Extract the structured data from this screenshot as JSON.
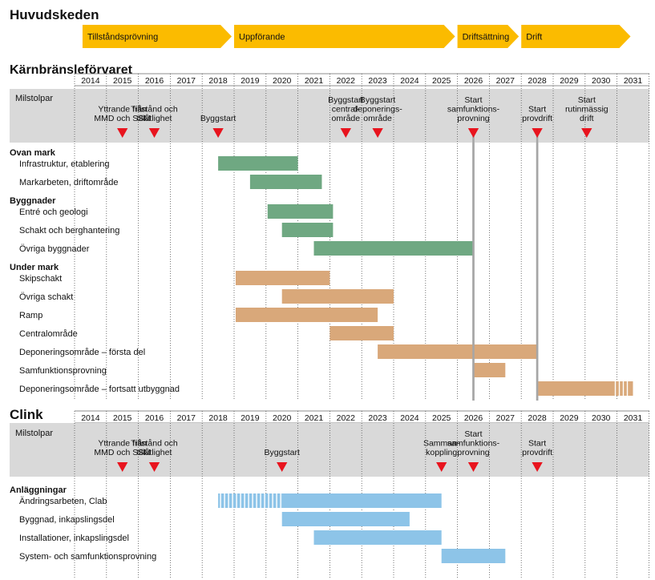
{
  "chart_data": {
    "type": "gantt",
    "years": [
      "2014",
      "2015",
      "2016",
      "2017",
      "2018",
      "2019",
      "2020",
      "2021",
      "2022",
      "2023",
      "2024",
      "2025",
      "2026",
      "2027",
      "2028",
      "2029",
      "2030",
      "2031"
    ],
    "main_timeline": {
      "title": "Huvudskeden",
      "phases": [
        {
          "label": "Tillståndsprövning",
          "start": 2014.25,
          "end": 2019.0
        },
        {
          "label": "Uppförande",
          "start": 2019.0,
          "end": 2026.0
        },
        {
          "label": "Driftsättning",
          "start": 2026.0,
          "end": 2028.0
        },
        {
          "label": "Drift",
          "start": 2028.0,
          "end": 2031.5
        }
      ]
    },
    "sections": [
      {
        "title": "Kärnbränsleförvaret",
        "milestones_label": "Milstolpar",
        "milestones": [
          {
            "label": "Yttrande från\nMMD och SSM",
            "x": 2015.5
          },
          {
            "label": "Tillstånd och\ntillåtlighet",
            "x": 2016.5
          },
          {
            "label": "Byggstart",
            "x": 2018.5
          },
          {
            "label": "Byggstart\ncentral-\nområde",
            "x": 2022.5
          },
          {
            "label": "Byggstart\ndeponerings-\nområde",
            "x": 2023.5
          },
          {
            "label": "Start\nsamfunktions-\nprovning",
            "x": 2026.5
          },
          {
            "label": "Start\nprovdrift",
            "x": 2028.5
          },
          {
            "label": "Start\nrutinmässig\ndrift",
            "x": 2030.05
          }
        ],
        "vertical_lines": [
          2026.5,
          2028.5
        ],
        "groups": [
          {
            "title": "Ovan mark",
            "color": "#6fa882",
            "tasks": [
              {
                "label": "Infrastruktur, etablering",
                "start": 2018.5,
                "end": 2021.0
              },
              {
                "label": "Markarbeten, driftområde",
                "start": 2019.5,
                "end": 2021.75
              }
            ]
          },
          {
            "title": "Byggnader",
            "color": "#6fa882",
            "tasks": [
              {
                "label": "Entré och geologi",
                "start": 2020.05,
                "end": 2022.1
              },
              {
                "label": "Schakt och berghantering",
                "start": 2020.5,
                "end": 2022.1
              },
              {
                "label": "Övriga byggnader",
                "start": 2021.5,
                "end": 2026.5
              }
            ]
          },
          {
            "title": "Under mark",
            "color": "#d9a87a",
            "tasks": [
              {
                "label": "Skipschakt",
                "start": 2019.05,
                "end": 2022.0
              },
              {
                "label": "Övriga schakt",
                "start": 2020.5,
                "end": 2024.0
              },
              {
                "label": "Ramp",
                "start": 2019.05,
                "end": 2023.5
              },
              {
                "label": "Centralområde",
                "start": 2022.0,
                "end": 2024.0
              },
              {
                "label": "Deponeringsområde – första del",
                "start": 2023.5,
                "end": 2028.5
              },
              {
                "label": "Samfunktionsprovning",
                "start": 2026.5,
                "end": 2027.5
              },
              {
                "label": "Deponeringsområde – fortsatt utbyggnad",
                "start": 2028.5,
                "end": 2031.5,
                "continues": true
              }
            ]
          }
        ]
      },
      {
        "title": "Clink",
        "milestones_label": "Milstolpar",
        "milestones": [
          {
            "label": "Yttrande från\nMMD och SSM",
            "x": 2015.5
          },
          {
            "label": "Tillstånd och\ntillåtlighet",
            "x": 2016.5
          },
          {
            "label": "Byggstart",
            "x": 2020.5
          },
          {
            "label": "Samman-\nkoppling",
            "x": 2025.5
          },
          {
            "label": "Start\nsamfunktions-\nprovning",
            "x": 2026.5
          },
          {
            "label": "Start\nprovdrift",
            "x": 2028.5
          }
        ],
        "vertical_lines": [],
        "groups": [
          {
            "title": "Anläggningar",
            "color": "#8dc4e8",
            "tasks": [
              {
                "label": "Ändringsarbeten, Clab",
                "start": 2018.5,
                "end": 2025.5,
                "lead_in_end": 2020.5
              },
              {
                "label": "Byggnad, inkapslingsdel",
                "start": 2020.5,
                "end": 2024.5
              },
              {
                "label": "Installationer, inkapslingsdel",
                "start": 2021.5,
                "end": 2025.5
              },
              {
                "label": "System- och samfunktionsprovning",
                "start": 2025.5,
                "end": 2027.5
              }
            ]
          }
        ]
      }
    ]
  }
}
